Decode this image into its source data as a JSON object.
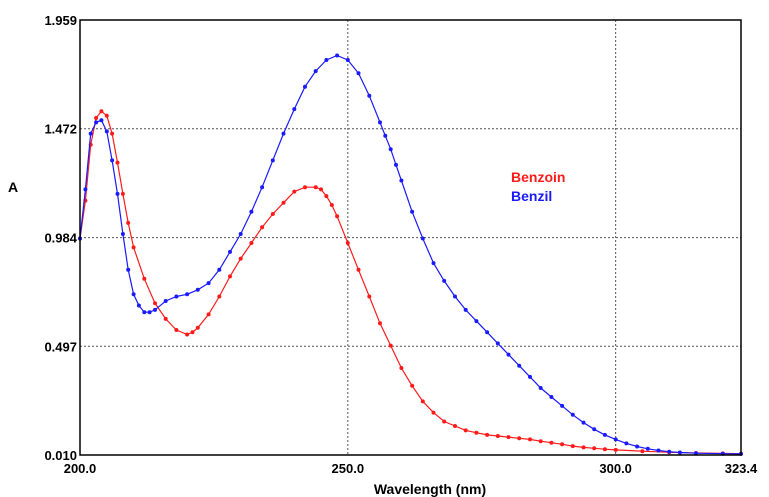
{
  "chart_data": {
    "type": "line",
    "xlabel": "Wavelength (nm)",
    "ylabel": "A",
    "xlim": [
      200.0,
      323.4
    ],
    "ylim": [
      0.01,
      1.959
    ],
    "x_ticks": [
      "200.0",
      "250.0",
      "300.0",
      "323.4"
    ],
    "y_ticks": [
      "0.010",
      "0.497",
      "0.984",
      "1.472",
      "1.959"
    ],
    "x_tick_values": [
      200.0,
      250.0,
      300.0,
      323.4
    ],
    "y_tick_values": [
      0.01,
      0.497,
      0.984,
      1.472,
      1.959
    ],
    "grid": true,
    "legend_position": "right",
    "series": [
      {
        "name": "Benzoin",
        "color": "#ff1a1a",
        "x": [
          200.0,
          201.0,
          202.0,
          203.0,
          204.0,
          205.0,
          206.0,
          207.0,
          208.0,
          209.0,
          210.0,
          212.0,
          214.0,
          216.0,
          218.0,
          220.0,
          221.0,
          222.0,
          224.0,
          226.0,
          228.0,
          230.0,
          232.0,
          234.0,
          236.0,
          238.0,
          240.0,
          242.0,
          244.0,
          245.0,
          246.0,
          247.0,
          248.0,
          250.0,
          252.0,
          254.0,
          256.0,
          258.0,
          260.0,
          262.0,
          264.0,
          266.0,
          268.0,
          270.0,
          272.0,
          274.0,
          276.0,
          278.0,
          280.0,
          282.0,
          284.0,
          286.0,
          288.0,
          290.0,
          292.0,
          294.0,
          296.0,
          298.0,
          300.0,
          305.0,
          310.0,
          315.0,
          320.0,
          323.4
        ],
        "y": [
          0.98,
          1.15,
          1.4,
          1.52,
          1.55,
          1.53,
          1.45,
          1.32,
          1.18,
          1.05,
          0.94,
          0.8,
          0.69,
          0.62,
          0.57,
          0.55,
          0.56,
          0.58,
          0.64,
          0.72,
          0.81,
          0.89,
          0.96,
          1.03,
          1.09,
          1.14,
          1.19,
          1.21,
          1.21,
          1.2,
          1.17,
          1.13,
          1.08,
          0.96,
          0.84,
          0.72,
          0.6,
          0.5,
          0.4,
          0.32,
          0.25,
          0.2,
          0.16,
          0.14,
          0.12,
          0.11,
          0.1,
          0.095,
          0.09,
          0.085,
          0.08,
          0.072,
          0.065,
          0.058,
          0.05,
          0.044,
          0.04,
          0.036,
          0.033,
          0.027,
          0.022,
          0.019,
          0.017,
          0.016
        ]
      },
      {
        "name": "Benzil",
        "color": "#1a1aff",
        "x": [
          200.0,
          201.0,
          202.0,
          203.0,
          204.0,
          205.0,
          206.0,
          207.0,
          208.0,
          209.0,
          210.0,
          211.0,
          212.0,
          213.0,
          214.0,
          216.0,
          218.0,
          220.0,
          222.0,
          224.0,
          226.0,
          228.0,
          230.0,
          232.0,
          234.0,
          236.0,
          238.0,
          240.0,
          242.0,
          244.0,
          246.0,
          248.0,
          250.0,
          252.0,
          254.0,
          256.0,
          257.0,
          258.0,
          259.0,
          260.0,
          262.0,
          264.0,
          266.0,
          268.0,
          270.0,
          272.0,
          274.0,
          276.0,
          278.0,
          280.0,
          282.0,
          284.0,
          286.0,
          288.0,
          290.0,
          292.0,
          294.0,
          296.0,
          298.0,
          300.0,
          302.0,
          304.0,
          306.0,
          308.0,
          310.0,
          312.0,
          315.0,
          320.0,
          323.4
        ],
        "y": [
          0.98,
          1.2,
          1.45,
          1.5,
          1.51,
          1.46,
          1.33,
          1.18,
          1.0,
          0.84,
          0.73,
          0.68,
          0.65,
          0.65,
          0.66,
          0.7,
          0.72,
          0.73,
          0.75,
          0.78,
          0.84,
          0.92,
          1.0,
          1.1,
          1.21,
          1.33,
          1.45,
          1.56,
          1.66,
          1.73,
          1.78,
          1.8,
          1.78,
          1.72,
          1.62,
          1.5,
          1.44,
          1.38,
          1.31,
          1.24,
          1.1,
          0.98,
          0.87,
          0.79,
          0.72,
          0.66,
          0.61,
          0.56,
          0.51,
          0.46,
          0.41,
          0.36,
          0.31,
          0.27,
          0.23,
          0.19,
          0.155,
          0.125,
          0.1,
          0.08,
          0.062,
          0.048,
          0.038,
          0.03,
          0.025,
          0.021,
          0.018,
          0.016,
          0.015
        ]
      }
    ]
  }
}
